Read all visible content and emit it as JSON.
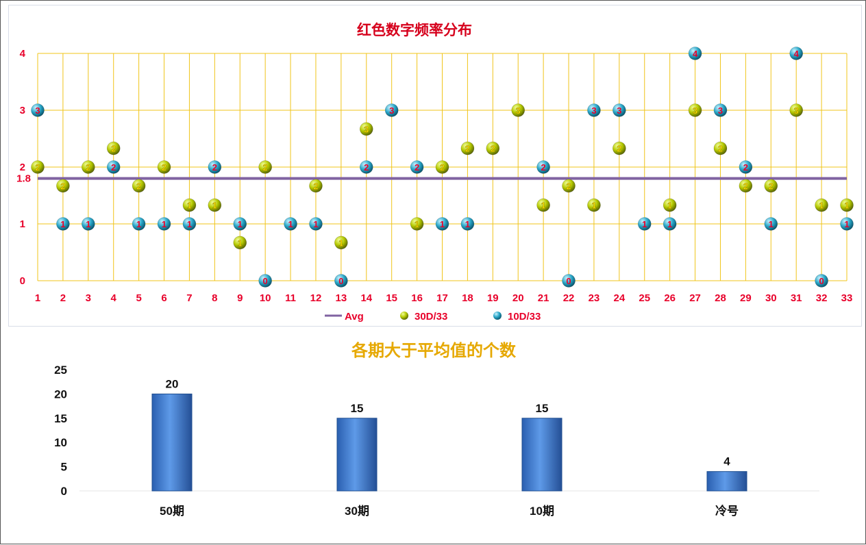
{
  "colors": {
    "grid": "#f0c419",
    "avg_line": "#8063a1",
    "series_30d": "#b5c900",
    "series_10d": "#2aa7c8",
    "label_red": "#e8002a",
    "label_yellow": "#ffe000",
    "bar": "#3d7fd6"
  },
  "chart_data": [
    {
      "type": "scatter",
      "title": "红色数字频率分布",
      "x": [
        "1",
        "2",
        "3",
        "4",
        "5",
        "6",
        "7",
        "8",
        "9",
        "10",
        "11",
        "12",
        "13",
        "14",
        "15",
        "16",
        "17",
        "18",
        "19",
        "20",
        "21",
        "22",
        "23",
        "24",
        "25",
        "26",
        "27",
        "28",
        "29",
        "30",
        "31",
        "32",
        "33"
      ],
      "y_ticks": [
        "0",
        "1",
        "2",
        "3",
        "4"
      ],
      "ylim": [
        0,
        4
      ],
      "avg": {
        "name": "Avg",
        "value": 1.8,
        "label": "1.8"
      },
      "series": [
        {
          "name": "30D/33",
          "values": [
            2,
            1.67,
            2,
            2.33,
            1.67,
            2,
            1.33,
            1.33,
            0.67,
            2,
            null,
            1.67,
            0.67,
            2.67,
            null,
            1,
            2,
            2.33,
            2.33,
            3,
            1.33,
            1.67,
            1.33,
            2.33,
            null,
            1.33,
            3,
            2.33,
            1.67,
            1.67,
            3,
            1.33,
            1.33
          ],
          "labels": [
            "2",
            "2",
            "2",
            "2",
            "2",
            "2",
            "1",
            "1",
            "1",
            "2",
            "",
            "2",
            "1",
            "3",
            "",
            "1",
            "2",
            "2",
            "2",
            "3",
            "1",
            "2",
            "1",
            "2",
            "",
            "1",
            "3",
            "2",
            "2",
            "2",
            "3",
            "1",
            "1"
          ]
        },
        {
          "name": "10D/33",
          "values": [
            3,
            1,
            1,
            2,
            1,
            1,
            1,
            2,
            1,
            0,
            1,
            1,
            0,
            2,
            3,
            2,
            1,
            1,
            null,
            null,
            2,
            0,
            3,
            3,
            1,
            1,
            4,
            3,
            2,
            1,
            4,
            0,
            1
          ],
          "labels": [
            "3",
            "1",
            "1",
            "2",
            "1",
            "1",
            "1",
            "2",
            "1",
            "0",
            "1",
            "1",
            "0",
            "2",
            "3",
            "2",
            "1",
            "1",
            "",
            "",
            "2",
            "0",
            "3",
            "3",
            "1",
            "1",
            "4",
            "3",
            "2",
            "1",
            "4",
            "0",
            "1"
          ]
        }
      ],
      "legend": {
        "placement": "bottom",
        "entries": [
          "Avg",
          "30D/33",
          "10D/33"
        ]
      },
      "grid": true
    },
    {
      "type": "bar",
      "title": "各期大于平均值的个数",
      "categories": [
        "50期",
        "30期",
        "10期",
        "冷号"
      ],
      "values": [
        20,
        15,
        15,
        4
      ],
      "data_labels": [
        "20",
        "15",
        "15",
        "4"
      ],
      "y_ticks": [
        "0",
        "5",
        "10",
        "15",
        "20",
        "25"
      ],
      "ylim": [
        0,
        25
      ]
    }
  ]
}
